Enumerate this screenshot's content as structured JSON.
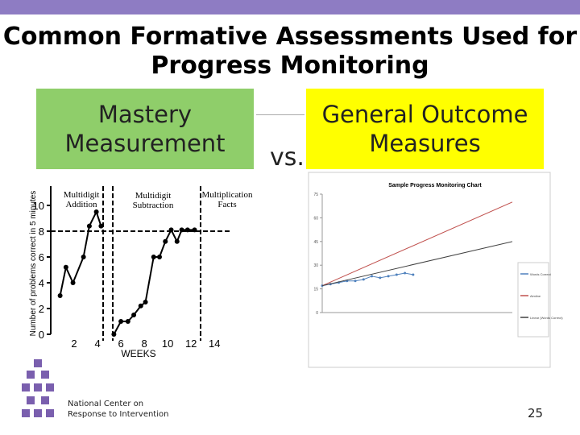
{
  "header": {
    "title": "Common Formative Assessments Used for Progress Monitoring"
  },
  "left_heading": "Mastery Measurement",
  "versus": "vs.",
  "right_heading": "General Outcome Measures",
  "mastery_chart": {
    "type": "line",
    "ylabel": "Number of problems correct in 5 minutes",
    "xlabel": "WEEKS",
    "phases": [
      "Multidigit Addition",
      "Multidigit Subtraction",
      "Multiplication Facts"
    ],
    "xlim": [
      0,
      15.5
    ],
    "ylim": [
      0,
      11.5
    ],
    "xticks": [
      2,
      4,
      6,
      8,
      10,
      12,
      14
    ],
    "yticks": [
      0,
      2,
      4,
      6,
      8,
      10
    ],
    "goal_line": 8,
    "series": [
      {
        "color": "#000000",
        "x": [
          0.8,
          1.3,
          1.9,
          2.8,
          3.3,
          3.9,
          4.3
        ],
        "values": [
          3,
          5.2,
          4,
          6,
          8.4,
          9.5,
          8.4
        ]
      },
      {
        "color": "#000000",
        "x": [
          5.4,
          6.0,
          6.6,
          7.1,
          7.7,
          8.1,
          8.8,
          9.3,
          9.8,
          10.3,
          10.8,
          11.2,
          11.7,
          12.3
        ],
        "values": [
          0,
          1,
          1,
          1.5,
          2.2,
          2.5,
          6,
          6,
          7.2,
          8.1,
          7.2,
          8.1,
          8.1,
          8.1
        ]
      }
    ]
  },
  "progress_chart": {
    "type": "line",
    "title": "Sample Progress Monitoring Chart",
    "xlim": [
      0,
      23
    ],
    "ylim": [
      0,
      75
    ],
    "yticks": [
      0,
      15,
      30,
      45,
      60,
      75
    ],
    "series": [
      {
        "name": "Words Correct",
        "color": "#4f81bd",
        "x": [
          0,
          1,
          2,
          3,
          4,
          5,
          6,
          7,
          8,
          9,
          10,
          11
        ],
        "values": [
          17,
          18,
          19,
          20,
          20,
          21,
          23,
          22,
          23,
          24,
          25,
          24
        ]
      },
      {
        "name": "Aimline",
        "color": "#c0504d",
        "x": [
          0,
          23
        ],
        "values": [
          17,
          70
        ]
      },
      {
        "name": "Linear (Words Correct)",
        "color": "#404040",
        "x": [
          0,
          23
        ],
        "values": [
          17,
          45
        ]
      }
    ]
  },
  "footer": {
    "org": "National Center on Response to Intervention",
    "page": "25"
  }
}
